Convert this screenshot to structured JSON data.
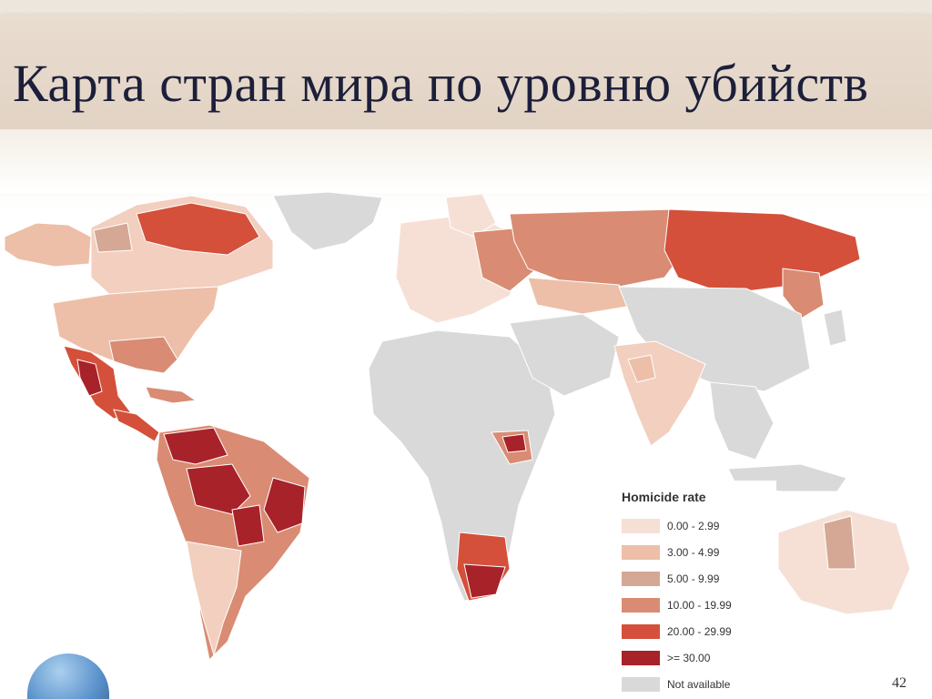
{
  "slide": {
    "title": "Карта стран мира по уровню убийств",
    "page_number": "42"
  },
  "legend": {
    "title": "Homicide rate",
    "items": [
      {
        "label": "0.00 - 2.99",
        "color": "#f6e0d6"
      },
      {
        "label": "3.00 - 4.99",
        "color": "#edbfa8"
      },
      {
        "label": "5.00 - 9.99",
        "color": "#d5a795"
      },
      {
        "label": "10.00 - 19.99",
        "color": "#d98c73"
      },
      {
        "label": "20.00 - 29.99",
        "color": "#d4503a"
      },
      {
        "label": ">= 30.00",
        "color": "#a8222a"
      },
      {
        "label": "Not available",
        "color": "#d9d9d9"
      }
    ]
  }
}
